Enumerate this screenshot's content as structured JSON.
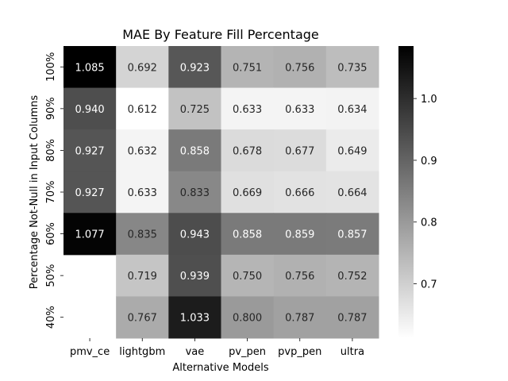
{
  "chart_data": {
    "type": "heatmap",
    "title": "MAE By Feature Fill Percentage",
    "xlabel": "Alternative Models",
    "ylabel": "Percentage Not-Null in Input Columns",
    "x_categories": [
      "pmv_ce",
      "lightgbm",
      "vae",
      "pv_pen",
      "pvp_pen",
      "ultra"
    ],
    "y_categories": [
      "100%",
      "90%",
      "80%",
      "70%",
      "60%",
      "50%",
      "40%"
    ],
    "values": [
      [
        1.085,
        0.692,
        0.923,
        0.751,
        0.756,
        0.735
      ],
      [
        0.94,
        0.612,
        0.725,
        0.633,
        0.633,
        0.634
      ],
      [
        0.927,
        0.632,
        0.858,
        0.678,
        0.677,
        0.649
      ],
      [
        0.927,
        0.633,
        0.833,
        0.669,
        0.666,
        0.664
      ],
      [
        1.077,
        0.835,
        0.943,
        0.858,
        0.859,
        0.857
      ],
      [
        null,
        0.719,
        0.939,
        0.75,
        0.756,
        0.752
      ],
      [
        null,
        0.767,
        1.033,
        0.8,
        0.787,
        0.787
      ]
    ],
    "value_format": "0.000",
    "colormap": "Greys",
    "colorbar": {
      "vmin": 0.612,
      "vmax": 1.085,
      "ticks": [
        0.7,
        0.8,
        0.9,
        1.0
      ],
      "tick_labels": [
        "0.7",
        "0.8",
        "0.9",
        "1.0"
      ]
    },
    "colors": {
      "low": "#ffffff",
      "high": "#000000",
      "text_dark": "#262626",
      "text_light": "#ffffff"
    }
  }
}
